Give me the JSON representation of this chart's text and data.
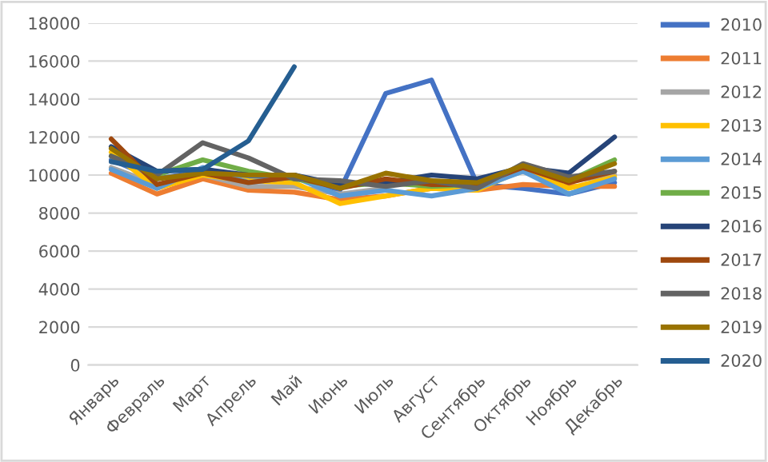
{
  "chart_data": {
    "type": "line",
    "categories": [
      "Январь",
      "Февраль",
      "Март",
      "Апрель",
      "Май",
      "Июнь",
      "Июль",
      "Август",
      "Сентябрь",
      "Октябрь",
      "Ноябрь",
      "Декабрь"
    ],
    "ylim": [
      0,
      18000
    ],
    "yticks": [
      0,
      2000,
      4000,
      6000,
      8000,
      10000,
      12000,
      14000,
      16000,
      18000
    ],
    "grid": "y",
    "legend": "right",
    "marker": "none",
    "line_style": "solid",
    "series": [
      {
        "name": "2010",
        "color": "#4472c4",
        "values": [
          10800,
          9800,
          10200,
          9800,
          10000,
          9200,
          14300,
          15000,
          9500,
          9300,
          9000,
          9600
        ]
      },
      {
        "name": "2011",
        "color": "#ed7d31",
        "values": [
          10100,
          9000,
          9800,
          9200,
          9100,
          8700,
          8900,
          9300,
          9200,
          9500,
          9400,
          9400
        ]
      },
      {
        "name": "2012",
        "color": "#a5a5a5",
        "values": [
          10400,
          9500,
          10000,
          9400,
          9400,
          9000,
          9300,
          null,
          9400,
          10200,
          9700,
          10000
        ]
      },
      {
        "name": "2013",
        "color": "#ffc000",
        "values": [
          11200,
          9300,
          10000,
          9700,
          9600,
          8500,
          8900,
          9300,
          9200,
          10300,
          9300,
          9900
        ]
      },
      {
        "name": "2014",
        "color": "#5b9bd5",
        "values": [
          10300,
          9300,
          10400,
          9600,
          9900,
          8900,
          9200,
          8900,
          9300,
          10200,
          9000,
          9800
        ]
      },
      {
        "name": "2015",
        "color": "#70ad47",
        "values": [
          11000,
          10000,
          10800,
          10200,
          9800,
          9400,
          9600,
          9400,
          9500,
          10500,
          9700,
          10800
        ]
      },
      {
        "name": "2016",
        "color": "#264478",
        "values": [
          11500,
          10200,
          10300,
          10000,
          10000,
          9500,
          9600,
          10000,
          9800,
          10400,
          10100,
          12000
        ]
      },
      {
        "name": "2017",
        "color": "#9e480e",
        "values": [
          11900,
          9500,
          10100,
          9600,
          9900,
          9300,
          9800,
          9500,
          9500,
          10400,
          9600,
          10200
        ]
      },
      {
        "name": "2018",
        "color": "#636363",
        "values": [
          11000,
          10000,
          11700,
          10900,
          9800,
          9700,
          9400,
          9700,
          9300,
          10600,
          9900,
          10200
        ]
      },
      {
        "name": "2019",
        "color": "#997300",
        "values": [
          11400,
          9800,
          10100,
          10000,
          10000,
          9300,
          10100,
          9700,
          9600,
          10500,
          9700,
          10600
        ]
      },
      {
        "name": "2020",
        "color": "#255e91",
        "values": [
          10700,
          10200,
          10300,
          11800,
          15700,
          null,
          null,
          null,
          null,
          null,
          null,
          null
        ]
      }
    ]
  }
}
